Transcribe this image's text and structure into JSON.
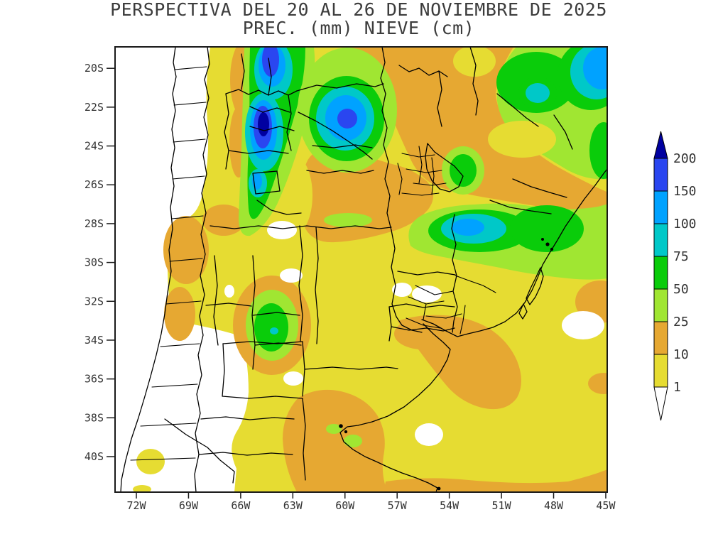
{
  "title": {
    "line1": "PERSPECTIVA DEL 20 AL 26 DE NOVIEMBRE DE 2025",
    "line2": "PREC. (mm) NIEVE (cm)"
  },
  "axes": {
    "lat_labels": [
      "20S",
      "22S",
      "24S",
      "26S",
      "28S",
      "30S",
      "32S",
      "34S",
      "36S",
      "38S",
      "40S"
    ],
    "lon_labels": [
      "72W",
      "69W",
      "66W",
      "63W",
      "60W",
      "57W",
      "54W",
      "51W",
      "48W",
      "45W"
    ]
  },
  "legend": {
    "labels": [
      "200",
      "150",
      "100",
      "75",
      "50",
      "25",
      "10",
      "1"
    ],
    "segments": [
      "blue",
      "skyblue",
      "cyan",
      "green",
      "yellowgreen",
      "orange",
      "yellow"
    ],
    "arrow_top": "navy",
    "arrow_bottom": "white"
  },
  "palette": {
    "navy": "#0000A0",
    "blue": "#2A46F0",
    "skyblue": "#00A2FF",
    "cyan": "#00C8C8",
    "green": "#0ACC0A",
    "yellowgreen": "#A0E632",
    "orange": "#E6A832",
    "yellow": "#E6DC32",
    "white": "#FFFFFF",
    "boundary": "#000000",
    "frame": "#1a1a1a",
    "text": "#3c3c3c"
  },
  "chart_data": {
    "type": "heatmap",
    "title": "PERSPECTIVA DEL 20 AL 26 DE NOVIEMBRE DE 2025",
    "subtitle": "PREC. (mm) NIEVE (cm)",
    "period": "20-26 November 2025",
    "units": {
      "precipitation": "mm",
      "snow": "cm"
    },
    "scale_levels": [
      1,
      10,
      25,
      50,
      75,
      100,
      150,
      200
    ],
    "scale_colors_low_to_high": [
      "white",
      "yellow",
      "orange",
      "yellowgreen",
      "green",
      "cyan",
      "skyblue",
      "blue",
      "navy"
    ],
    "lon_range_deg_west": [
      73,
      45
    ],
    "lat_range_deg_south": [
      19,
      42
    ],
    "legend_position": "right",
    "features": [
      {
        "region": "NW Argentina Andes band (Jujuy-Salta, ~66.3W 19-28S)",
        "value": "25-100 mm band with >200 mm core near 66.3W 23S and 150-200 mm core at 66.2W 19.5S"
      },
      {
        "region": "Bolivian-Paraguayan Chaco blob (~60.2W 22.5S)",
        "value": "25-100 mm rings with 150-200 mm core"
      },
      {
        "region": "Southern Brazil band (~28S, 49-57W)",
        "value": "25-75 mm band with 100-150 mm core near 51.5W 28.2S"
      },
      {
        "region": "SE Brazil top-right corner (~46W 19-21S)",
        "value": "75-150 mm maximum"
      },
      {
        "region": "Misiones / Parana spot (~53.2W 25.3S)",
        "value": "50-75 mm"
      },
      {
        "region": "Cordoba-San Luis spot (~65.5W 33.3S)",
        "value": "25-75 mm with small 75-100 mm core"
      },
      {
        "region": "Chilean Andes strip 19-31S and Cuyo-La Pampa-N Patagonia (31-42S)",
        "value": "< 1 mm (white)"
      },
      {
        "region": "Central-east Argentina and Uruguay background",
        "value": "1-10 mm (yellow) with 10-25 mm (orange) belts in N Argentina, Uruguay and S Buenos Aires"
      }
    ]
  }
}
